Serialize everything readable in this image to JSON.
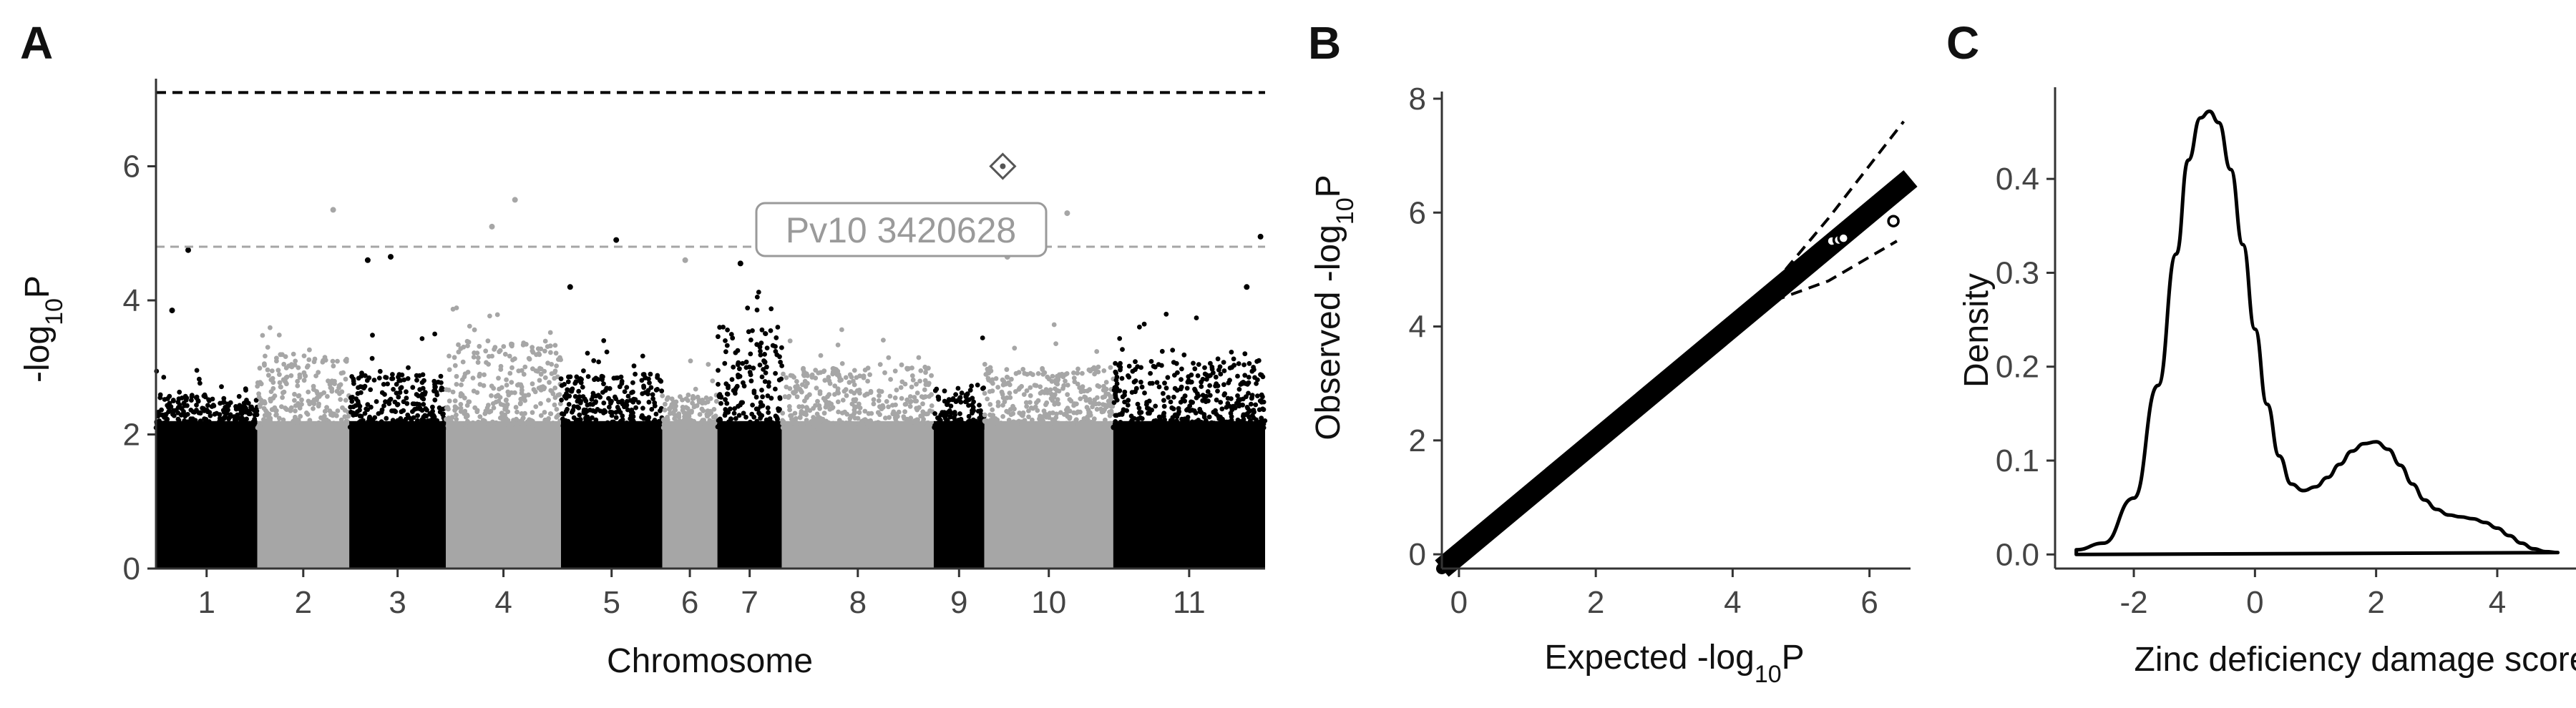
{
  "panels": [
    {
      "letter": "A"
    },
    {
      "letter": "B"
    },
    {
      "letter": "C"
    }
  ],
  "chart_data": [
    {
      "type": "scatter",
      "subtype": "manhattan",
      "xlabel": "Chromosome",
      "ylabel_base": "-log",
      "ylabel_sub": "10",
      "ylabel_tail": "P",
      "ylim": [
        0,
        7.2
      ],
      "yticks": [
        0,
        2,
        4,
        6
      ],
      "grid": false,
      "chromosomes": [
        {
          "label": "1",
          "start": 0,
          "end": 2.2,
          "color": "#000000"
        },
        {
          "label": "2",
          "start": 2.2,
          "end": 4.2,
          "color": "#a6a6a6"
        },
        {
          "label": "3",
          "start": 4.2,
          "end": 6.3,
          "color": "#000000"
        },
        {
          "label": "4",
          "start": 6.3,
          "end": 8.8,
          "color": "#a6a6a6"
        },
        {
          "label": "5",
          "start": 8.8,
          "end": 11.0,
          "color": "#000000"
        },
        {
          "label": "6",
          "start": 11.0,
          "end": 12.2,
          "color": "#a6a6a6"
        },
        {
          "label": "7",
          "start": 12.2,
          "end": 13.6,
          "color": "#000000"
        },
        {
          "label": "8",
          "start": 13.6,
          "end": 16.9,
          "color": "#a6a6a6"
        },
        {
          "label": "9",
          "start": 16.9,
          "end": 18.0,
          "color": "#000000"
        },
        {
          "label": "10",
          "start": 18.0,
          "end": 20.8,
          "color": "#a6a6a6"
        },
        {
          "label": "11",
          "start": 20.8,
          "end": 24.1,
          "color": "#000000"
        }
      ],
      "bulk_top": [
        2.6,
        3.2,
        2.9,
        3.4,
        2.9,
        2.6,
        3.6,
        3.0,
        2.7,
        3.0,
        3.1
      ],
      "peaks": [
        {
          "x": 0.7,
          "y": 4.75
        },
        {
          "x": 0.35,
          "y": 3.85
        },
        {
          "x": 3.85,
          "y": 5.35
        },
        {
          "x": 4.6,
          "y": 4.6
        },
        {
          "x": 5.1,
          "y": 4.65
        },
        {
          "x": 7.3,
          "y": 5.1
        },
        {
          "x": 7.8,
          "y": 5.5
        },
        {
          "x": 9.0,
          "y": 4.2
        },
        {
          "x": 10.0,
          "y": 4.9
        },
        {
          "x": 11.5,
          "y": 4.6
        },
        {
          "x": 12.7,
          "y": 4.55
        },
        {
          "x": 15.4,
          "y": 4.7
        },
        {
          "x": 18.5,
          "y": 4.65
        },
        {
          "x": 19.8,
          "y": 5.3
        },
        {
          "x": 24.0,
          "y": 4.95
        },
        {
          "x": 23.7,
          "y": 4.2
        }
      ],
      "highlight": {
        "label": "Pv10 3420628",
        "x": 18.4,
        "y": 6.0
      },
      "thresholds": [
        {
          "y": 7.1,
          "color": "#000000",
          "style": "dashed"
        },
        {
          "y": 4.8,
          "color": "#a6a6a6",
          "style": "dashed"
        }
      ]
    },
    {
      "type": "scatter",
      "subtype": "qq",
      "xlabel_base": "Expected -log",
      "xlabel_sub": "10",
      "xlabel_tail": "P",
      "ylabel_base": "Observed -log",
      "ylabel_sub": "10",
      "ylabel_tail": "P",
      "xlim": [
        -0.25,
        6.6
      ],
      "ylim": [
        -0.25,
        8.0
      ],
      "xticks": [
        0,
        2,
        4,
        6
      ],
      "yticks": [
        0,
        2,
        4,
        6,
        8
      ],
      "diagonal": {
        "x0": -0.25,
        "x1": 6.6,
        "slope": 1.0
      },
      "ci_upper": [
        [
          4.6,
          4.75
        ],
        [
          5.4,
          5.9
        ],
        [
          6.5,
          7.6
        ]
      ],
      "ci_lower": [
        [
          4.6,
          4.45
        ],
        [
          5.4,
          4.8
        ],
        [
          6.4,
          5.5
        ]
      ],
      "outliers": [
        [
          5.45,
          5.5
        ],
        [
          5.55,
          5.52
        ],
        [
          5.62,
          5.55
        ],
        [
          6.35,
          5.85
        ]
      ],
      "grid": false
    },
    {
      "type": "line",
      "subtype": "density",
      "xlabel": "Zinc deficiency damage score",
      "ylabel": "Density",
      "xlim": [
        -3.3,
        5.3
      ],
      "ylim": [
        -0.015,
        0.49
      ],
      "xticks": [
        -2,
        0,
        2,
        4
      ],
      "yticks": [
        0.0,
        0.1,
        0.2,
        0.3,
        0.4
      ],
      "ytick_labels": [
        "0.0",
        "0.1",
        "0.2",
        "0.3",
        "0.4"
      ],
      "x": [
        -2.95,
        -2.5,
        -2.0,
        -1.6,
        -1.3,
        -1.1,
        -0.9,
        -0.75,
        -0.6,
        -0.4,
        -0.2,
        0.0,
        0.2,
        0.4,
        0.6,
        0.8,
        1.0,
        1.2,
        1.4,
        1.6,
        1.8,
        2.0,
        2.2,
        2.4,
        2.6,
        2.8,
        3.0,
        3.2,
        3.4,
        3.6,
        3.8,
        4.0,
        4.2,
        4.4,
        4.6,
        4.8,
        5.0
      ],
      "y": [
        0.005,
        0.012,
        0.06,
        0.18,
        0.32,
        0.42,
        0.465,
        0.472,
        0.46,
        0.41,
        0.33,
        0.24,
        0.16,
        0.105,
        0.075,
        0.068,
        0.072,
        0.082,
        0.096,
        0.11,
        0.118,
        0.12,
        0.112,
        0.095,
        0.075,
        0.058,
        0.048,
        0.042,
        0.04,
        0.038,
        0.034,
        0.028,
        0.02,
        0.012,
        0.006,
        0.003,
        0.002
      ],
      "baseline": 0.0,
      "grid": false
    }
  ]
}
